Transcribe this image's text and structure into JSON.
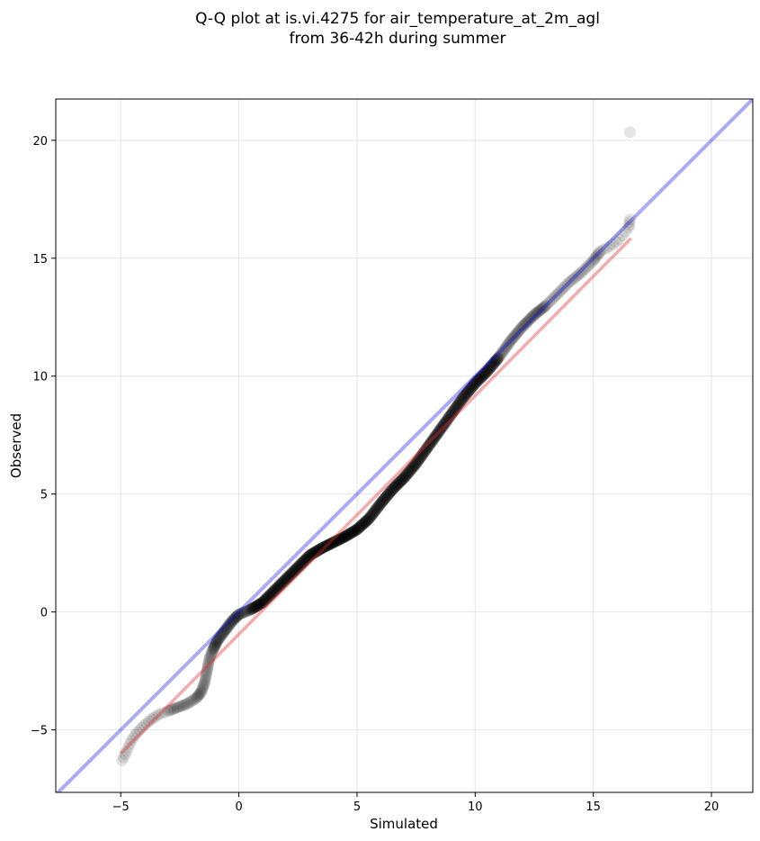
{
  "chart_data": {
    "type": "scatter",
    "title": "Q-Q plot at is.vi.4275 for air_temperature_at_2m_agl",
    "subtitle": "from 36-42h during summer",
    "xlabel": "Simulated",
    "ylabel": "Observed",
    "xlim": [
      -7.75,
      21.75
    ],
    "ylim": [
      -7.65,
      21.75
    ],
    "xticks": [
      -5,
      0,
      5,
      10,
      15,
      20
    ],
    "yticks": [
      -5,
      0,
      5,
      10,
      15,
      20
    ],
    "xtick_labels": [
      "−5",
      "0",
      "5",
      "10",
      "15",
      "20"
    ],
    "ytick_labels": [
      "−5",
      "0",
      "5",
      "10",
      "15",
      "20"
    ],
    "grid": true,
    "colors": {
      "points": "#000000",
      "identity_line": "#0000dd",
      "fit_line": "#e03030"
    },
    "quantile_path": [
      [
        -4.95,
        -6.3
      ],
      [
        -4.75,
        -5.9
      ],
      [
        -4.55,
        -5.45
      ],
      [
        -4.3,
        -5.1
      ],
      [
        -4.0,
        -4.8
      ],
      [
        -3.7,
        -4.55
      ],
      [
        -3.4,
        -4.35
      ],
      [
        -3.0,
        -4.2
      ],
      [
        -2.6,
        -4.05
      ],
      [
        -2.2,
        -3.9
      ],
      [
        -1.8,
        -3.65
      ],
      [
        -1.6,
        -3.4
      ],
      [
        -1.45,
        -3.0
      ],
      [
        -1.35,
        -2.5
      ],
      [
        -1.25,
        -2.0
      ],
      [
        -1.1,
        -1.6
      ],
      [
        -0.9,
        -1.2
      ],
      [
        -0.6,
        -0.8
      ],
      [
        -0.3,
        -0.4
      ],
      [
        0.0,
        -0.1
      ],
      [
        0.5,
        0.1
      ],
      [
        1.0,
        0.4
      ],
      [
        1.5,
        0.9
      ],
      [
        2.0,
        1.4
      ],
      [
        2.5,
        1.9
      ],
      [
        3.0,
        2.4
      ],
      [
        3.5,
        2.7
      ],
      [
        4.0,
        2.95
      ],
      [
        4.5,
        3.2
      ],
      [
        5.0,
        3.5
      ],
      [
        5.5,
        3.95
      ],
      [
        6.0,
        4.6
      ],
      [
        6.5,
        5.2
      ],
      [
        7.0,
        5.7
      ],
      [
        7.5,
        6.3
      ],
      [
        8.0,
        7.0
      ],
      [
        8.5,
        7.7
      ],
      [
        9.0,
        8.4
      ],
      [
        9.5,
        9.1
      ],
      [
        10.0,
        9.7
      ],
      [
        10.5,
        10.2
      ],
      [
        11.0,
        10.8
      ],
      [
        11.5,
        11.5
      ],
      [
        12.0,
        12.1
      ],
      [
        12.5,
        12.6
      ],
      [
        13.0,
        13.0
      ],
      [
        13.5,
        13.5
      ],
      [
        14.0,
        14.0
      ],
      [
        14.5,
        14.4
      ],
      [
        15.0,
        14.9
      ],
      [
        15.3,
        15.3
      ],
      [
        15.7,
        15.5
      ],
      [
        16.1,
        15.8
      ],
      [
        16.5,
        16.3
      ],
      [
        16.55,
        16.65
      ]
    ],
    "outliers": [
      [
        16.55,
        20.35
      ]
    ],
    "identity_line": [
      [
        -7.75,
        -7.75
      ],
      [
        21.75,
        21.75
      ]
    ],
    "fit_line": [
      [
        -4.95,
        -5.95
      ],
      [
        16.55,
        15.8
      ]
    ]
  }
}
